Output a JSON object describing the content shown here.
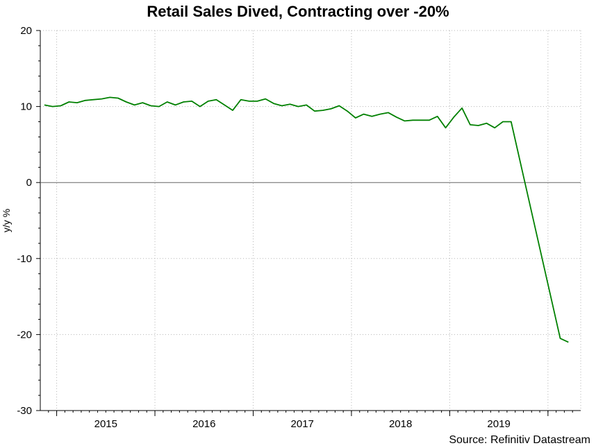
{
  "chart_data": {
    "type": "line",
    "title": "Retail Sales Dived, Contracting over -20%",
    "ylabel": "y/y %",
    "xlabel": "",
    "ylim": [
      -30,
      20
    ],
    "yticks": [
      20,
      10,
      0,
      -10,
      -20,
      -30
    ],
    "xlim": [
      "2014-11",
      "2020-05"
    ],
    "xticks": [
      "2015",
      "2016",
      "2017",
      "2018",
      "2019"
    ],
    "grid": true,
    "line_color": "#008000",
    "series": [
      {
        "x": [
          "2014-11",
          "2014-12",
          "2015-01",
          "2015-02",
          "2015-03",
          "2015-04",
          "2015-05",
          "2015-06",
          "2015-07",
          "2015-08",
          "2015-09",
          "2015-10",
          "2015-11",
          "2015-12",
          "2016-01",
          "2016-02",
          "2016-03",
          "2016-04",
          "2016-05",
          "2016-06",
          "2016-07",
          "2016-08",
          "2016-09",
          "2016-10",
          "2016-11",
          "2016-12",
          "2017-01",
          "2017-02",
          "2017-03",
          "2017-04",
          "2017-05",
          "2017-06",
          "2017-07",
          "2017-08",
          "2017-09",
          "2017-10",
          "2017-11",
          "2017-12",
          "2018-01",
          "2018-02",
          "2018-03",
          "2018-04",
          "2018-05",
          "2018-06",
          "2018-07",
          "2018-08",
          "2018-09",
          "2018-10",
          "2018-11",
          "2018-12",
          "2019-01",
          "2019-02",
          "2019-03",
          "2019-04",
          "2019-05",
          "2019-06",
          "2019-07",
          "2019-08",
          "2019-09",
          "2019-10",
          "2019-11",
          "2019-12",
          "2020-01",
          "2020-02",
          "2020-03"
        ],
        "values": [
          10.2,
          10.0,
          10.1,
          10.6,
          10.5,
          10.8,
          10.9,
          11.0,
          11.2,
          11.1,
          10.6,
          10.2,
          10.5,
          10.1,
          10.0,
          10.6,
          10.2,
          10.6,
          10.7,
          10.0,
          10.7,
          10.9,
          10.2,
          9.5,
          10.9,
          10.7,
          10.7,
          11.0,
          10.4,
          10.1,
          10.3,
          10.0,
          10.2,
          9.4,
          9.5,
          9.7,
          10.1,
          9.4,
          8.5,
          9.0,
          8.7,
          9.0,
          9.2,
          8.6,
          8.1,
          8.2,
          8.2,
          8.2,
          8.7,
          7.2,
          8.6,
          9.8,
          7.6,
          7.5,
          7.8,
          7.2,
          8.0,
          8.0,
          null,
          null,
          null,
          null,
          null,
          -20.5,
          -21.0
        ]
      }
    ],
    "segments_note_hidden": null
  },
  "source": "Source: Refinitiv Datastream"
}
